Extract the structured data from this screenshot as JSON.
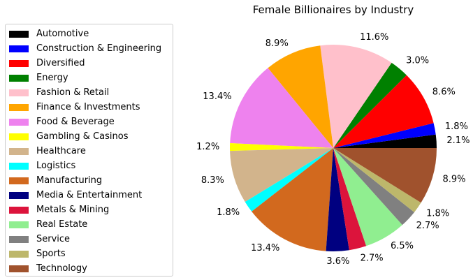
{
  "chart_data": {
    "type": "pie",
    "title": "Female Billionaires by Industry",
    "legend_position": "left",
    "start_angle_deg": 0,
    "direction": "counterclockwise",
    "slices": [
      {
        "label": "Automotive",
        "value": 2.1,
        "display": "2.1%",
        "color": "#000000"
      },
      {
        "label": "Construction & Engineering",
        "value": 1.8,
        "display": "1.8%",
        "color": "#0000ff"
      },
      {
        "label": "Diversified",
        "value": 8.6,
        "display": "8.6%",
        "color": "#ff0000"
      },
      {
        "label": "Energy",
        "value": 3.0,
        "display": "3.0%",
        "color": "#008000"
      },
      {
        "label": "Fashion & Retail",
        "value": 11.6,
        "display": "11.6%",
        "color": "#ffc0cb"
      },
      {
        "label": "Finance & Investments",
        "value": 8.9,
        "display": "8.9%",
        "color": "#ffa500"
      },
      {
        "label": "Food & Beverage",
        "value": 13.4,
        "display": "13.4%",
        "color": "#ee82ee"
      },
      {
        "label": "Gambling & Casinos",
        "value": 1.2,
        "display": "1.2%",
        "color": "#ffff00"
      },
      {
        "label": "Healthcare",
        "value": 8.3,
        "display": "8.3%",
        "color": "#d2b48c"
      },
      {
        "label": "Logistics",
        "value": 1.8,
        "display": "1.8%",
        "color": "#00ffff"
      },
      {
        "label": "Manufacturing",
        "value": 13.4,
        "display": "13.4%",
        "color": "#d2691e"
      },
      {
        "label": "Media & Entertainment",
        "value": 3.6,
        "display": "3.6%",
        "color": "#000080"
      },
      {
        "label": "Metals & Mining",
        "value": 2.7,
        "display": "2.7%",
        "color": "#dc143c"
      },
      {
        "label": "Real Estate",
        "value": 6.5,
        "display": "6.5%",
        "color": "#90ee90"
      },
      {
        "label": "Service",
        "value": 2.7,
        "display": "2.7%",
        "color": "#808080"
      },
      {
        "label": "Sports",
        "value": 1.8,
        "display": "1.8%",
        "color": "#bdb76b"
      },
      {
        "label": "Technology",
        "value": 8.9,
        "display": "8.9%",
        "color": "#a0522d"
      }
    ]
  }
}
